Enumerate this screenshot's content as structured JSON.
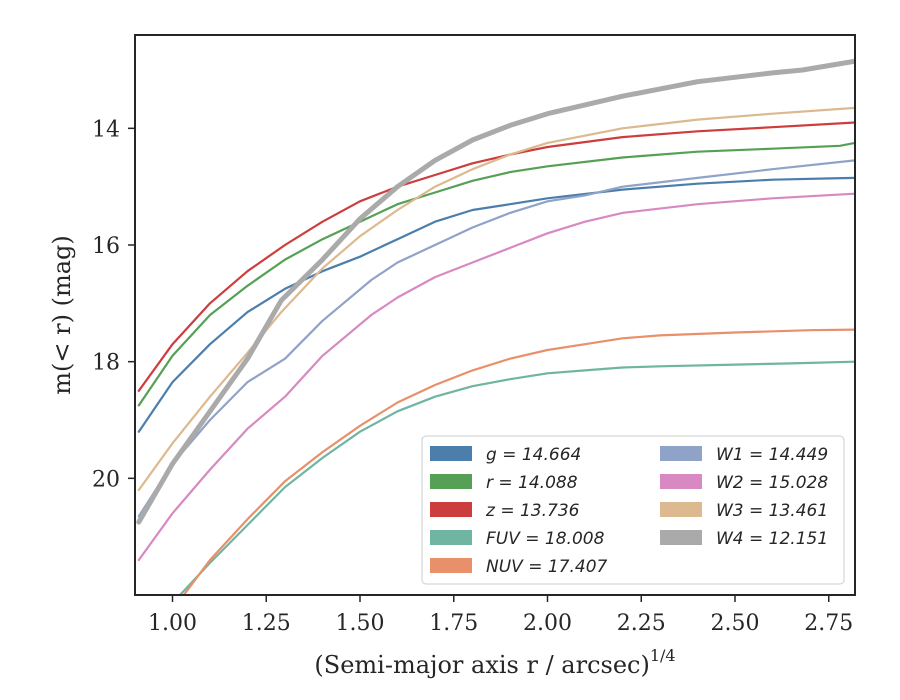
{
  "chart_data": {
    "type": "line",
    "xlabel": "(Semi-major axis r / arcsec)",
    "xlabel_sup": "1/4",
    "ylabel": "m(< r) (mag)",
    "xlim": [
      0.9,
      2.82
    ],
    "ylim": [
      22.0,
      12.4
    ],
    "y_inverted": true,
    "x_ticks": [
      1.0,
      1.25,
      1.5,
      1.75,
      2.0,
      2.25,
      2.5,
      2.75
    ],
    "x_tick_labels": [
      "1.00",
      "1.25",
      "1.50",
      "1.75",
      "2.00",
      "2.25",
      "2.50",
      "2.75"
    ],
    "y_ticks": [
      14,
      16,
      18,
      20
    ],
    "y_tick_labels": [
      "14",
      "16",
      "18",
      "20"
    ],
    "grid": false,
    "legend_position": "bottom-right",
    "series": [
      {
        "name": "g = 14.664",
        "color": "#4c7eac",
        "x": [
          0.91,
          1.0,
          1.1,
          1.2,
          1.3,
          1.4,
          1.5,
          1.6,
          1.7,
          1.8,
          1.9,
          2.0,
          2.2,
          2.4,
          2.6,
          2.74,
          2.82
        ],
        "y": [
          19.2,
          18.35,
          17.7,
          17.15,
          16.75,
          16.45,
          16.2,
          15.9,
          15.6,
          15.4,
          15.3,
          15.2,
          15.05,
          14.95,
          14.88,
          14.86,
          14.85
        ]
      },
      {
        "name": "r = 14.088",
        "color": "#55a055",
        "x": [
          0.91,
          1.0,
          1.1,
          1.2,
          1.3,
          1.4,
          1.5,
          1.6,
          1.7,
          1.8,
          1.9,
          2.0,
          2.2,
          2.4,
          2.6,
          2.78,
          2.82
        ],
        "y": [
          18.75,
          17.9,
          17.2,
          16.7,
          16.25,
          15.9,
          15.6,
          15.3,
          15.1,
          14.9,
          14.75,
          14.65,
          14.5,
          14.4,
          14.35,
          14.3,
          14.25
        ]
      },
      {
        "name": "z = 13.736",
        "color": "#cc3d3d",
        "x": [
          0.91,
          1.0,
          1.1,
          1.2,
          1.3,
          1.4,
          1.5,
          1.6,
          1.7,
          1.8,
          1.9,
          2.0,
          2.2,
          2.4,
          2.6,
          2.82
        ],
        "y": [
          18.5,
          17.7,
          17.0,
          16.45,
          16.0,
          15.6,
          15.25,
          15.0,
          14.8,
          14.6,
          14.45,
          14.32,
          14.15,
          14.05,
          13.98,
          13.9
        ]
      },
      {
        "name": "FUV = 18.008",
        "color": "#6fb5a1",
        "x": [
          1.02,
          1.1,
          1.2,
          1.3,
          1.4,
          1.5,
          1.6,
          1.7,
          1.8,
          1.9,
          2.0,
          2.1,
          2.2,
          2.3,
          2.5,
          2.65,
          2.82
        ],
        "y": [
          22.0,
          21.45,
          20.8,
          20.15,
          19.65,
          19.2,
          18.85,
          18.6,
          18.42,
          18.3,
          18.2,
          18.15,
          18.1,
          18.08,
          18.05,
          18.03,
          18.0
        ]
      },
      {
        "name": "NUV = 17.407",
        "color": "#e8906a",
        "x": [
          1.03,
          1.1,
          1.2,
          1.3,
          1.4,
          1.5,
          1.6,
          1.7,
          1.8,
          1.9,
          2.0,
          2.1,
          2.2,
          2.3,
          2.5,
          2.7,
          2.82
        ],
        "y": [
          22.0,
          21.4,
          20.7,
          20.05,
          19.55,
          19.1,
          18.7,
          18.4,
          18.15,
          17.95,
          17.8,
          17.7,
          17.6,
          17.55,
          17.5,
          17.46,
          17.45
        ]
      },
      {
        "name": "W1 = 14.449",
        "color": "#8fa3c8",
        "x": [
          0.91,
          1.0,
          1.1,
          1.2,
          1.3,
          1.4,
          1.53,
          1.6,
          1.7,
          1.8,
          1.9,
          2.0,
          2.1,
          2.2,
          2.4,
          2.6,
          2.82
        ],
        "y": [
          20.65,
          19.75,
          19.0,
          18.35,
          17.95,
          17.3,
          16.6,
          16.3,
          16.0,
          15.7,
          15.45,
          15.25,
          15.15,
          15.0,
          14.85,
          14.7,
          14.55
        ]
      },
      {
        "name": "W2 = 15.028",
        "color": "#d889c2",
        "x": [
          0.91,
          1.0,
          1.1,
          1.2,
          1.3,
          1.4,
          1.53,
          1.6,
          1.7,
          1.8,
          1.9,
          2.0,
          2.1,
          2.2,
          2.4,
          2.6,
          2.82
        ],
        "y": [
          21.4,
          20.6,
          19.85,
          19.15,
          18.6,
          17.9,
          17.2,
          16.9,
          16.55,
          16.3,
          16.05,
          15.8,
          15.6,
          15.45,
          15.3,
          15.2,
          15.12
        ]
      },
      {
        "name": "W3 = 13.461",
        "color": "#dcb98e",
        "x": [
          0.91,
          1.0,
          1.1,
          1.2,
          1.29,
          1.4,
          1.5,
          1.6,
          1.7,
          1.8,
          1.9,
          2.0,
          2.2,
          2.4,
          2.6,
          2.82
        ],
        "y": [
          20.2,
          19.4,
          18.6,
          17.85,
          17.15,
          16.4,
          15.85,
          15.4,
          15.0,
          14.7,
          14.45,
          14.25,
          14.0,
          13.85,
          13.75,
          13.65
        ]
      },
      {
        "name": "W4 = 12.151",
        "color": "#aaaaaa",
        "x": [
          0.91,
          1.0,
          1.1,
          1.2,
          1.29,
          1.4,
          1.5,
          1.6,
          1.7,
          1.8,
          1.9,
          2.0,
          2.2,
          2.4,
          2.6,
          2.68,
          2.82
        ],
        "y": [
          20.75,
          19.75,
          18.85,
          17.95,
          16.95,
          16.25,
          15.55,
          15.0,
          14.55,
          14.2,
          13.95,
          13.75,
          13.45,
          13.2,
          13.05,
          13.0,
          12.85
        ]
      }
    ]
  }
}
